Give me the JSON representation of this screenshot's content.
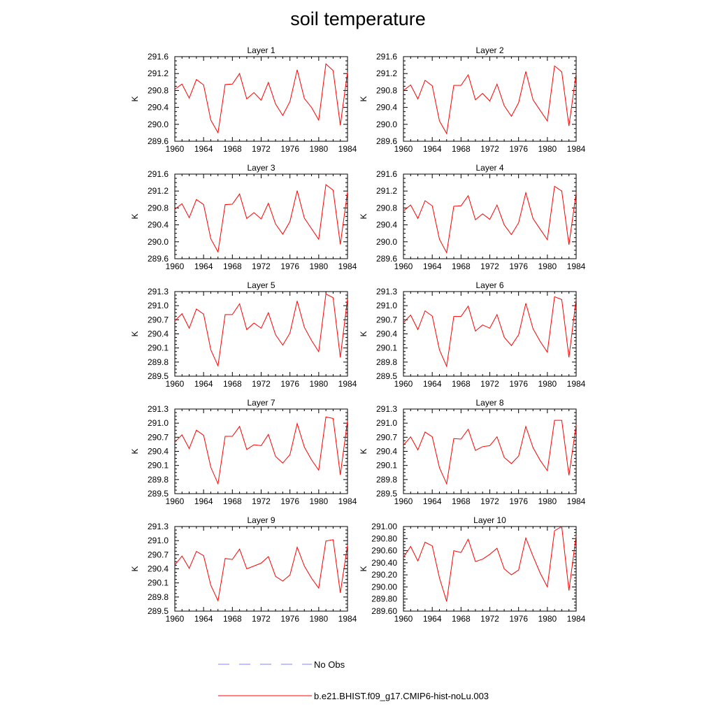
{
  "title": "soil temperature",
  "colors": {
    "model": "#ff0000",
    "obs": "#8080ff",
    "axis": "#000000"
  },
  "chart_data": {
    "type": "line",
    "x_ticks": [
      1960,
      1964,
      1968,
      1972,
      1976,
      1980,
      1984
    ],
    "x": [
      1960,
      1961,
      1962,
      1963,
      1964,
      1965,
      1966,
      1967,
      1968,
      1969,
      1970,
      1971,
      1972,
      1973,
      1974,
      1975,
      1976,
      1977,
      1978,
      1979,
      1980,
      1981,
      1982,
      1983,
      1984
    ],
    "xlim": [
      1960,
      1984
    ],
    "ylabel": "K",
    "legend": [
      {
        "name": "No Obs",
        "style": "dashed",
        "color": "#8080ff"
      },
      {
        "name": "b.e21.BHIST.f09_g17.CMIP6-hist-noLu.003",
        "style": "solid",
        "color": "#ff0000"
      }
    ],
    "panels": [
      {
        "title": "Layer 1",
        "ylim": [
          289.6,
          291.6
        ],
        "yticks": [
          "289.6",
          "290.0",
          "290.4",
          "290.8",
          "291.2",
          "291.6"
        ],
        "values": [
          290.83,
          290.95,
          290.62,
          291.06,
          290.93,
          290.1,
          289.8,
          290.94,
          290.95,
          291.2,
          290.6,
          290.75,
          290.57,
          290.99,
          290.48,
          290.21,
          290.54,
          291.29,
          290.61,
          290.4,
          290.1,
          291.43,
          291.27,
          289.98,
          291.23
        ]
      },
      {
        "title": "Layer 2",
        "ylim": [
          289.6,
          291.6
        ],
        "yticks": [
          "289.6",
          "290.0",
          "290.4",
          "290.8",
          "291.2",
          "291.6"
        ],
        "values": [
          290.8,
          290.93,
          290.6,
          291.04,
          290.91,
          290.08,
          289.78,
          290.92,
          290.92,
          291.17,
          290.58,
          290.73,
          290.55,
          290.95,
          290.44,
          290.19,
          290.51,
          291.25,
          290.58,
          290.33,
          290.08,
          291.38,
          291.24,
          289.96,
          291.2
        ]
      },
      {
        "title": "Layer 3",
        "ylim": [
          289.6,
          291.6
        ],
        "yticks": [
          "289.6",
          "290.0",
          "290.4",
          "290.8",
          "291.2",
          "291.6"
        ],
        "values": [
          290.77,
          290.9,
          290.57,
          291.0,
          290.88,
          290.07,
          289.76,
          290.88,
          290.89,
          291.13,
          290.55,
          290.69,
          290.54,
          290.91,
          290.42,
          290.18,
          290.48,
          291.21,
          290.56,
          290.31,
          290.06,
          291.35,
          291.22,
          289.94,
          291.18
        ]
      },
      {
        "title": "Layer 4",
        "ylim": [
          289.6,
          291.6
        ],
        "yticks": [
          "289.6",
          "290.0",
          "290.4",
          "290.8",
          "291.2",
          "291.6"
        ],
        "values": [
          290.73,
          290.87,
          290.55,
          290.97,
          290.85,
          290.06,
          289.74,
          290.84,
          290.85,
          291.09,
          290.52,
          290.66,
          290.53,
          290.87,
          290.4,
          290.17,
          290.45,
          291.16,
          290.55,
          290.3,
          290.05,
          291.31,
          291.2,
          289.93,
          291.16
        ]
      },
      {
        "title": "Layer 5",
        "ylim": [
          289.5,
          291.3
        ],
        "yticks": [
          "289.5",
          "289.8",
          "290.1",
          "290.4",
          "290.7",
          "291.0",
          "291.3"
        ],
        "values": [
          290.68,
          290.83,
          290.52,
          290.93,
          290.82,
          290.06,
          289.72,
          290.81,
          290.81,
          291.04,
          290.49,
          290.63,
          290.52,
          290.85,
          290.38,
          290.16,
          290.42,
          291.1,
          290.54,
          290.26,
          290.02,
          291.25,
          291.17,
          289.9,
          291.15
        ]
      },
      {
        "title": "Layer 6",
        "ylim": [
          289.5,
          291.3
        ],
        "yticks": [
          "289.5",
          "289.8",
          "290.1",
          "290.4",
          "290.7",
          "291.0",
          "291.3"
        ],
        "values": [
          290.64,
          290.8,
          290.49,
          290.89,
          290.78,
          290.06,
          289.71,
          290.77,
          290.77,
          290.99,
          290.46,
          290.59,
          290.52,
          290.81,
          290.33,
          290.15,
          290.38,
          291.05,
          290.51,
          290.24,
          290.01,
          291.19,
          291.13,
          289.9,
          291.14
        ]
      },
      {
        "title": "Layer 7",
        "ylim": [
          289.5,
          291.3
        ],
        "yticks": [
          "289.5",
          "289.8",
          "290.1",
          "290.4",
          "290.7",
          "291.0",
          "291.3"
        ],
        "values": [
          290.6,
          290.75,
          290.46,
          290.85,
          290.74,
          290.06,
          289.71,
          290.72,
          290.72,
          290.93,
          290.44,
          290.54,
          290.52,
          290.76,
          290.29,
          290.15,
          290.33,
          290.99,
          290.49,
          290.22,
          290.0,
          291.13,
          291.1,
          289.9,
          291.05
        ]
      },
      {
        "title": "Layer 8",
        "ylim": [
          289.5,
          291.3
        ],
        "yticks": [
          "289.5",
          "289.8",
          "290.1",
          "290.4",
          "290.7",
          "291.0",
          "291.3"
        ],
        "values": [
          290.53,
          290.71,
          290.43,
          290.81,
          290.71,
          290.05,
          289.71,
          290.67,
          290.66,
          290.87,
          290.42,
          290.5,
          290.52,
          290.71,
          290.27,
          290.14,
          290.3,
          290.93,
          290.48,
          290.21,
          289.99,
          291.06,
          291.06,
          289.89,
          290.96
        ]
      },
      {
        "title": "Layer 9",
        "ylim": [
          289.5,
          291.3
        ],
        "yticks": [
          "289.5",
          "289.8",
          "290.1",
          "290.4",
          "290.7",
          "291.0",
          "291.3"
        ],
        "values": [
          290.48,
          290.67,
          290.41,
          290.77,
          290.68,
          290.05,
          289.72,
          290.62,
          290.6,
          290.82,
          290.4,
          290.46,
          290.52,
          290.66,
          290.24,
          290.14,
          290.27,
          290.86,
          290.46,
          290.2,
          289.99,
          290.99,
          291.02,
          289.89,
          290.9
        ]
      },
      {
        "title": "Layer 10",
        "ylim": [
          289.6,
          291.0
        ],
        "yticks": [
          "289.60",
          "289.80",
          "290.00",
          "290.20",
          "290.40",
          "290.60",
          "290.80",
          "291.00"
        ],
        "values": [
          290.49,
          290.67,
          290.43,
          290.74,
          290.68,
          290.15,
          289.76,
          290.6,
          290.57,
          290.79,
          290.42,
          290.46,
          290.54,
          290.64,
          290.3,
          290.2,
          290.28,
          290.81,
          290.51,
          290.23,
          290.0,
          290.93,
          291.0,
          289.94,
          290.85
        ]
      }
    ]
  }
}
